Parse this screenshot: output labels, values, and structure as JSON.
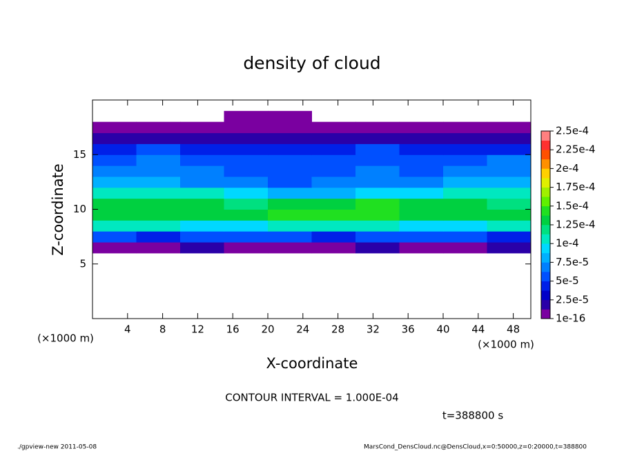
{
  "chart_data": {
    "type": "contour",
    "title": "density of cloud",
    "xlabel": "X-coordinate",
    "ylabel": "Z-coordinate",
    "x_unit": "(×1000 m)",
    "xlim": [
      0,
      50
    ],
    "ylim": [
      0,
      20
    ],
    "xticks": [
      4,
      8,
      12,
      16,
      20,
      24,
      28,
      32,
      36,
      40,
      44,
      48
    ],
    "yticks": [
      5,
      10,
      15
    ],
    "x": [
      2.5,
      7.5,
      12.5,
      17.5,
      22.5,
      27.5,
      32.5,
      37.5,
      42.5,
      47.5
    ],
    "y": [
      0.5,
      1.5,
      2.5,
      3.5,
      4.5,
      5.5,
      6.5,
      7.5,
      8.5,
      9.5,
      10.5,
      11.5,
      12.5,
      13.5,
      14.5,
      15.5,
      16.5,
      17.5,
      18.5,
      19.5
    ],
    "values": [
      [
        null,
        null,
        null,
        null,
        null,
        null,
        null,
        null,
        null,
        null
      ],
      [
        null,
        null,
        null,
        null,
        null,
        null,
        null,
        null,
        null,
        null
      ],
      [
        null,
        null,
        null,
        null,
        null,
        null,
        null,
        null,
        null,
        null
      ],
      [
        null,
        null,
        null,
        null,
        null,
        null,
        null,
        null,
        null,
        null
      ],
      [
        null,
        null,
        null,
        null,
        null,
        null,
        null,
        null,
        null,
        null
      ],
      [
        null,
        null,
        null,
        null,
        null,
        null,
        null,
        null,
        null,
        null
      ],
      [
        1e-05,
        1e-05,
        1.5e-05,
        1e-05,
        5e-06,
        1e-05,
        1.5e-05,
        1e-05,
        1e-05,
        1.5e-05
      ],
      [
        5e-05,
        4e-05,
        5e-05,
        6e-05,
        5e-05,
        4e-05,
        5e-05,
        6e-05,
        5e-05,
        4e-05
      ],
      [
        0.000105,
        0.0001,
        9e-05,
        9e-05,
        0.0001,
        0.00011,
        0.000105,
        9e-05,
        9.5e-05,
        0.0001
      ],
      [
        0.00013,
        0.000135,
        0.00013,
        0.000125,
        0.00014,
        0.000145,
        0.00014,
        0.000135,
        0.00013,
        0.000125
      ],
      [
        0.000125,
        0.00013,
        0.000135,
        0.00012,
        0.00013,
        0.000135,
        0.00014,
        0.000135,
        0.00013,
        0.00012
      ],
      [
        0.0001,
        0.000105,
        0.00011,
        9e-05,
        8e-05,
        8.5e-05,
        9e-05,
        9.5e-05,
        0.0001,
        0.000105
      ],
      [
        7.5e-05,
        8e-05,
        7e-05,
        6.5e-05,
        6e-05,
        6.5e-05,
        7e-05,
        7e-05,
        7.5e-05,
        8e-05
      ],
      [
        6.5e-05,
        7e-05,
        6.5e-05,
        6e-05,
        5.5e-05,
        6e-05,
        6.5e-05,
        6e-05,
        6.5e-05,
        7e-05
      ],
      [
        6e-05,
        6.5e-05,
        6e-05,
        5.5e-05,
        5e-05,
        5.5e-05,
        6e-05,
        5.5e-05,
        6e-05,
        6.5e-05
      ],
      [
        4.5e-05,
        5e-05,
        4.5e-05,
        4e-05,
        4e-05,
        4.5e-05,
        5e-05,
        4.5e-05,
        4e-05,
        4.5e-05
      ],
      [
        2e-05,
        2e-05,
        1.5e-05,
        2e-05,
        2e-05,
        1.5e-05,
        2e-05,
        2e-05,
        1.5e-05,
        2e-05
      ],
      [
        5e-06,
        5e-06,
        5e-06,
        5e-06,
        5e-06,
        5e-06,
        5e-06,
        5e-06,
        5e-06,
        5e-06
      ],
      [
        null,
        null,
        null,
        5e-06,
        5e-06,
        null,
        null,
        null,
        null,
        null
      ],
      [
        null,
        null,
        null,
        null,
        null,
        null,
        null,
        null,
        null,
        null
      ]
    ],
    "colorbar_ticks": [
      {
        "value": 1e-16,
        "label": "1e-16"
      },
      {
        "value": 2.5e-05,
        "label": "2.5e-5"
      },
      {
        "value": 5e-05,
        "label": "5e-5"
      },
      {
        "value": 7.5e-05,
        "label": "7.5e-5"
      },
      {
        "value": 0.0001,
        "label": "1e-4"
      },
      {
        "value": 0.000125,
        "label": "1.25e-4"
      },
      {
        "value": 0.00015,
        "label": "1.5e-4"
      },
      {
        "value": 0.000175,
        "label": "1.75e-4"
      },
      {
        "value": 0.0002,
        "label": "2e-4"
      },
      {
        "value": 0.000225,
        "label": "2.25e-4"
      },
      {
        "value": 0.00025,
        "label": "2.5e-4"
      }
    ],
    "colors": [
      "#7a00a0",
      "#2a00a8",
      "#0000c8",
      "#0020e8",
      "#0050ff",
      "#0080ff",
      "#00b0ff",
      "#00d8ff",
      "#00e8c0",
      "#00e080",
      "#00d040",
      "#20e020",
      "#60f000",
      "#a0f000",
      "#e0f000",
      "#ffd000",
      "#ff9000",
      "#ff5000",
      "#ff3030",
      "#ff8080"
    ],
    "annotations": [
      "CONTOUR INTERVAL = 1.000E-04",
      "t=388800 s"
    ],
    "footer_left": "./gpview-new  2011-05-08",
    "footer_right": "MarsCond_DensCloud.nc@DensCloud,x=0:50000,z=0:20000,t=388800"
  }
}
